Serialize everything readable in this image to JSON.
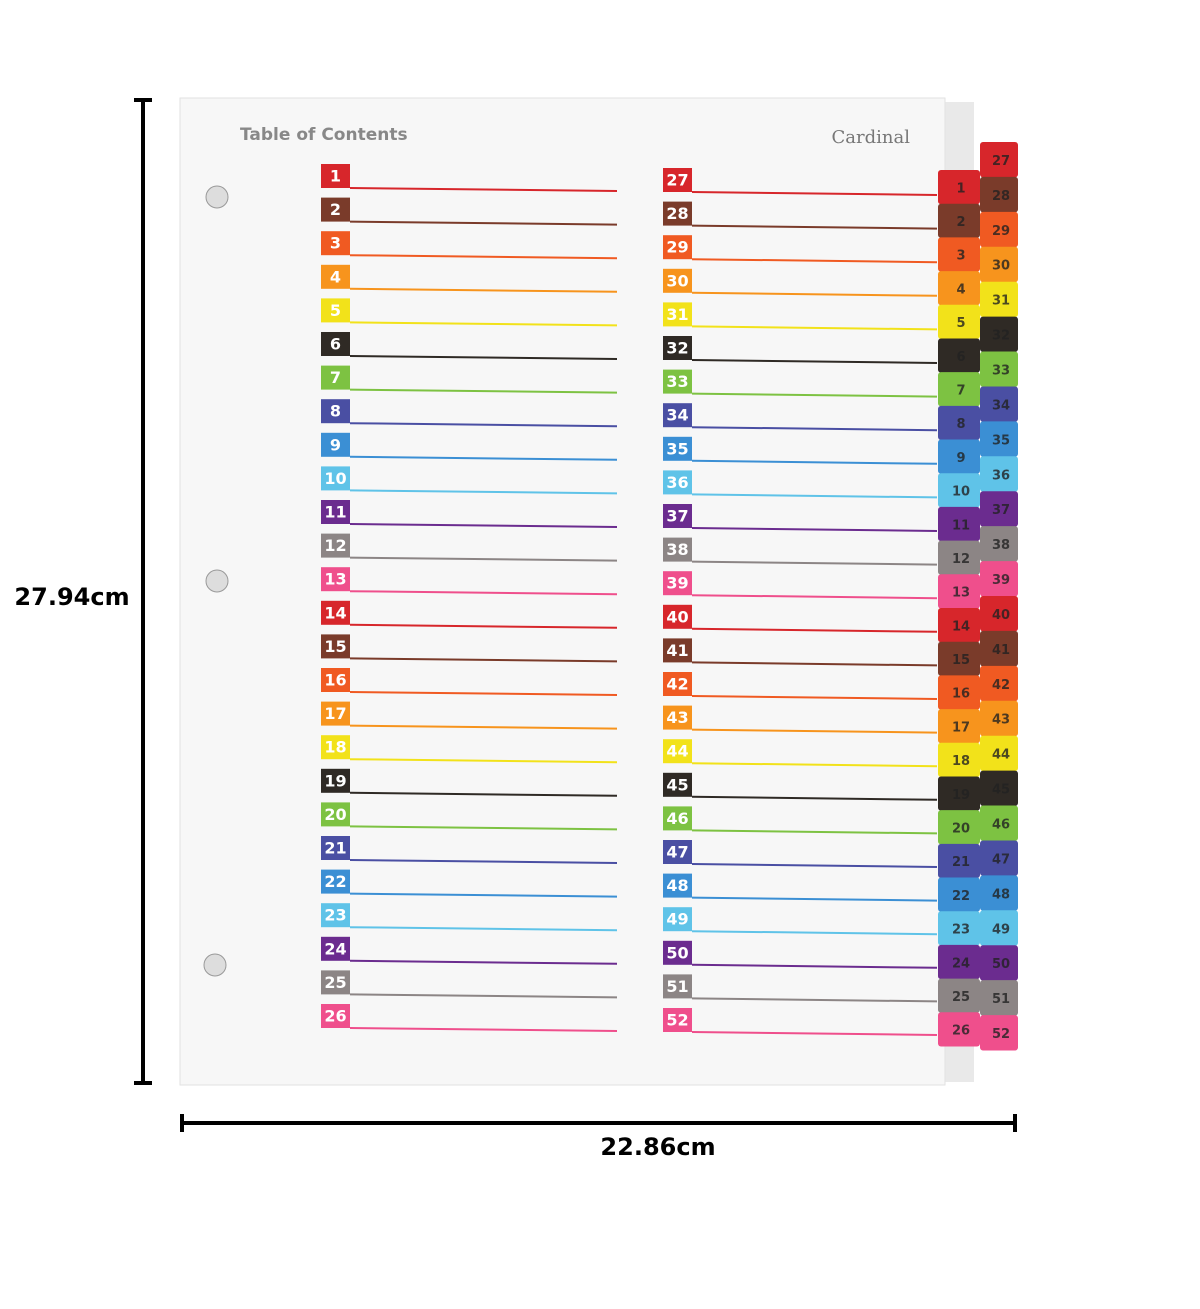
{
  "header": {
    "title": "Table of Contents",
    "brand": "Cardinal"
  },
  "dimensions": {
    "height": "27.94cm",
    "width": "22.86cm"
  },
  "palette": [
    "#d7262b",
    "#7a3b2a",
    "#f05a22",
    "#f7941d",
    "#f2e21a",
    "#2f2a25",
    "#7dc242",
    "#4a4fa3",
    "#3b8fd4",
    "#5fc3e8",
    "#6b2c8f",
    "#8c8585",
    "#ef4f8c"
  ],
  "entries": [
    1,
    2,
    3,
    4,
    5,
    6,
    7,
    8,
    9,
    10,
    11,
    12,
    13,
    14,
    15,
    16,
    17,
    18,
    19,
    20,
    21,
    22,
    23,
    24,
    25,
    26,
    27,
    28,
    29,
    30,
    31,
    32,
    33,
    34,
    35,
    36,
    37,
    38,
    39,
    40,
    41,
    42,
    43,
    44,
    45,
    46,
    47,
    48,
    49,
    50,
    51,
    52
  ]
}
